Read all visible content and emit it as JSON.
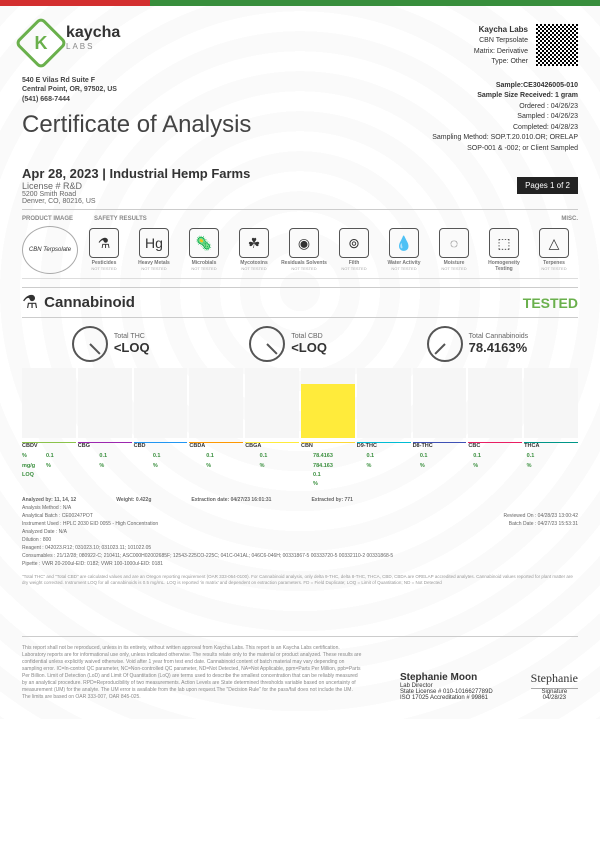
{
  "logo": {
    "brand": "kaycha",
    "sub": "LABS"
  },
  "address": {
    "line1": "540 E Vilas Rd Suite F",
    "line2": "Central Point, OR, 97502, US",
    "phone": "(541) 668-7444"
  },
  "lab": {
    "name": "Kaycha Labs",
    "product": "CBN Terpsolate",
    "matrix": "Matrix: Derivative",
    "type": "Type: Other"
  },
  "title": "Certificate of Analysis",
  "sample": {
    "id": "Sample:CE30426005-010",
    "size": "Sample Size Received: 1 gram",
    "ordered": "Ordered : 04/26/23",
    "sampled": "Sampled : 04/26/23",
    "completed": "Completed: 04/28/23",
    "method": "Sampling Method: SOP.T.20.010.OR; ORELAP",
    "method2": "SOP-001 & -002; or Client Sampled"
  },
  "order": {
    "date": "Apr 28, 2023 | Industrial Hemp Farms",
    "license": "License # R&D",
    "addr1": "5200 Smith Road",
    "addr2": "Denver, CO, 80216, US"
  },
  "page_badge": "Pages 1 of 2",
  "sections": {
    "l1": "PRODUCT IMAGE",
    "l2": "SAFETY RESULTS",
    "l3": "MISC."
  },
  "prod_img": "CBN Terpsolate",
  "safety": [
    {
      "icon": "⚗",
      "label": "Pesticides",
      "status": "NOT TESTED"
    },
    {
      "icon": "Hg",
      "label": "Heavy Metals",
      "status": "NOT TESTED"
    },
    {
      "icon": "🦠",
      "label": "Microbials",
      "status": "NOT TESTED"
    },
    {
      "icon": "☘",
      "label": "Mycotoxins",
      "status": "NOT TESTED"
    },
    {
      "icon": "◉",
      "label": "Residuals Solvents",
      "status": "NOT TESTED"
    },
    {
      "icon": "⊚",
      "label": "Filth",
      "status": "NOT TESTED"
    },
    {
      "icon": "💧",
      "label": "Water Activity",
      "status": "NOT TESTED"
    },
    {
      "icon": "◌",
      "label": "Moisture",
      "status": "NOT TESTED"
    },
    {
      "icon": "⬚",
      "label": "Homogeneity Testing",
      "status": ""
    },
    {
      "icon": "△",
      "label": "Terpenes",
      "status": "NOT TESTED"
    }
  ],
  "cannabinoid": {
    "label": "Cannabinoid",
    "tested": "TESTED"
  },
  "gauges": {
    "thc": {
      "t": "Total THC",
      "v": "<LOQ"
    },
    "cbd": {
      "t": "Total CBD",
      "v": "<LOQ"
    },
    "total": {
      "t": "Total Cannabinoids",
      "v": "78.4163%"
    }
  },
  "chart": {
    "cols": [
      "CBDV",
      "CBG",
      "CBD",
      "CBDA",
      "CBGA",
      "CBN",
      "D9-THC",
      "D8-THC",
      "CBC",
      "THCA"
    ],
    "colors": [
      "#8bc34a",
      "#9c27b0",
      "#2196f3",
      "#ff9800",
      "#ffeb3b",
      "#fdd835",
      "#00bcd4",
      "#3f51b5",
      "#e91e63",
      "#009688"
    ],
    "bars": [
      0,
      0,
      0,
      0,
      0,
      78,
      0,
      0,
      0,
      0
    ]
  },
  "results": {
    "row_labels": [
      "%",
      "mg/g",
      "LOQ"
    ],
    "values": [
      [
        "<LOQ",
        "<LOQ",
        "0.1",
        "%"
      ],
      [
        "<LOQ",
        "<LOQ",
        "0.1",
        "%"
      ],
      [
        "<LOQ",
        "<LOQ",
        "0.1",
        "%"
      ],
      [
        "<LOQ",
        "<LOQ",
        "0.1",
        "%"
      ],
      [
        "<LOQ",
        "<LOQ",
        "0.1",
        "%"
      ],
      [
        "78.4163",
        "784.163",
        "0.1",
        "%"
      ],
      [
        "<LOQ",
        "<LOQ",
        "0.1",
        "%"
      ],
      [
        "<LOQ",
        "<LOQ",
        "0.1",
        "%"
      ],
      [
        "<LOQ",
        "<LOQ",
        "0.1",
        "%"
      ],
      [
        "<LOQ",
        "<LOQ",
        "0.1",
        "%"
      ]
    ]
  },
  "meta": {
    "analyzed_by": "Analyzed by: 11, 14, 12",
    "weight": "Weight: 0.422g",
    "extraction": "Extraction date: 04/27/23 16:01:31",
    "extracted_by": "Extracted by: 771",
    "method": "Analysis Method : N/A",
    "batch": "Analytical Batch : CE00247POT",
    "instrument": "Instrument Used : HPLC 2030 EID 0055 - High Concentration",
    "reviewed": "Reviewed On : 04/28/23 13:00:42",
    "batch_date": "Batch Date : 04/27/23 15:53:31",
    "analyzed_date": "Analyzed Date : N/A",
    "dilution": "Dilution : 800",
    "reagent": "Reagent : 042023.R12; 031023.10; 031023.11; 101022.05",
    "consumables": "Consumables : 21/12/28; 080922-C; 210411; ASC000H02002685F; 12543-225CO-225C; 041C-041AL; 046C6-046H; 00331867-5 00333720-5 00332110-2 00331868-5",
    "pipette": "Pipette : VWR 20-200ul-EID: 0182; VWR 100-1000ul-EID: 0181"
  },
  "disclaimer_top": "\"Total THC\" and \"Total CBD\" are calculated values and are an Oregon reporting requirement (OAR 333-064-0100). For Cannabinoid analysis, only delta 9-THC, delta 8-THC, THCA, CBD, CBDA are ORELAP accredited analytes. Cannabinoid values reported for plant matter are dry weight corrected. Instrument LOQ for all cannabinoids is 0.5 mg/mL. LOQ is reported 'in matrix' and dependent on extraction parameters. FD = Field Duplicate; LOQ = Limit of Quantitation; ND = Not Detected",
  "footer": {
    "disclaimer": "This report shall not be reproduced, unless in its entirety, without written approval from Kaycha Labs. This report is an Kaycha Labs certification. Laboratory reports are for informational use only, unless indicated otherwise. The results relate only to the material or product analyzed. These results are confidential unless explicitly waived otherwise. Void after 1 year from test end date. Cannabinoid content of batch material may vary depending on sampling error. IC=In-control QC parameter, NC=Non-controlled QC parameter, ND=Not Detected, NA=Not Applicable, ppm=Parts Per Million, ppb=Parts Per Billion. Limit of Detection (LoD) and Limit Of Quantitation (LoQ) are terms used to describe the smallest concentration that can be reliably measured by an analytical procedure. RPD=Reproducibility of two measurements. Action Levels are State determined thresholds variable based on uncertainty of measurement (UM) for the analyte. The UM error is available from the lab upon request.The \"Decision Rule\" for the pass/fail does not include the UM. The limits are based on OAR 333-007, OAR 845-025.",
    "signer": "Stephanie Moon",
    "role": "Lab Director",
    "state_lic": "State License # 010-1016627789D",
    "iso": "ISO 17025 Accreditation # 99861",
    "sig_label": "Signature",
    "sig_date": "04/28/23"
  }
}
